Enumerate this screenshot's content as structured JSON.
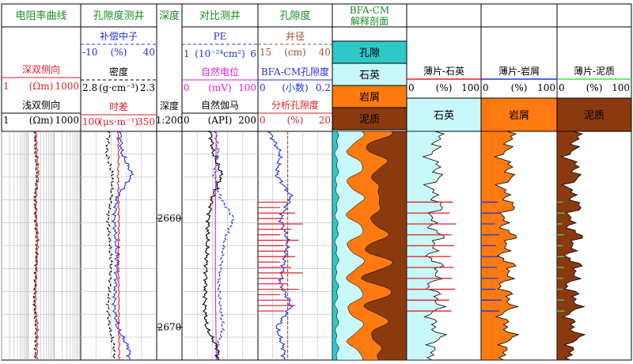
{
  "tracks": {
    "resistivity": {
      "title": "电阻率曲线",
      "curves": [
        {
          "name": "深双侧向",
          "left": "1",
          "unit": "(Ωm)",
          "right": "1000",
          "color": "#e0202a"
        },
        {
          "name": "浅双侧向",
          "left": "1",
          "unit": "(Ωm)",
          "right": "1000",
          "color": "#000000"
        }
      ]
    },
    "porosity_logs": {
      "title": "孔隙度测井",
      "curves": [
        {
          "name": "补偿中子",
          "left": "-10",
          "unit": "(%)",
          "right": "40",
          "color": "#2233dd"
        },
        {
          "name": "密度",
          "left": "2.8",
          "unit": "(g·cm⁻³)",
          "right": "2.3",
          "color": "#000000"
        },
        {
          "name": "时差",
          "left": "100",
          "unit": "(μs·m⁻¹)",
          "right": "350",
          "color": "#e0202a"
        }
      ]
    },
    "depth": {
      "title": "深度",
      "label": "深度",
      "scale": "1:200",
      "ticks": [
        "2660",
        "2670"
      ]
    },
    "correlation": {
      "title": "对比测井",
      "curves": [
        {
          "name": "PE",
          "left": "1",
          "unit": "(10⁻²⁴cm²)",
          "right": "6",
          "color": "#2233dd"
        },
        {
          "name": "自然电位",
          "left": "0",
          "unit": "(mV)",
          "right": "100",
          "color": "#dd22dd"
        },
        {
          "name": "自然伽马",
          "left": "0",
          "unit": "(API)",
          "right": "200",
          "color": "#000000"
        }
      ]
    },
    "porosity": {
      "title": "孔隙度",
      "curves": [
        {
          "name": "井径",
          "left": "15",
          "unit": "(cm)",
          "right": "40",
          "color": "#a0522d"
        },
        {
          "name": "BFA-CM孔隙度",
          "left": "0",
          "unit": "(小数)",
          "right": "0.2",
          "color": "#2233dd"
        },
        {
          "name": "分析孔隙度",
          "left": "0",
          "unit": "(%)",
          "right": "20",
          "color": "#e0202a"
        }
      ]
    },
    "bfa_profile": {
      "title": "BFA-CM",
      "subtitle": "解释剖面",
      "legend": [
        {
          "label": "孔隙",
          "color": "#2ec8c8"
        },
        {
          "label": "石英",
          "color": "#c8f8fa"
        },
        {
          "label": "岩屑",
          "color": "#ff7a10"
        },
        {
          "label": "泥质",
          "color": "#8b3a10"
        }
      ]
    },
    "thin_quartz": {
      "title": "薄片-石英",
      "left": "0",
      "unit": "(%)",
      "right": "100",
      "fill_label": "石英",
      "fill_color": "#c8f8fa",
      "mark_color": "#e0202a"
    },
    "thin_lithic": {
      "title": "薄片-岩屑",
      "left": "0",
      "unit": "(%)",
      "right": "100",
      "fill_label": "岩屑",
      "fill_color": "#ff7a10",
      "mark_color": "#2233dd"
    },
    "thin_clay": {
      "title": "薄片-泥质",
      "left": "0",
      "unit": "(%)",
      "right": "100",
      "fill_label": "泥质",
      "fill_color": "#8b3a10",
      "mark_color": "#44dd44"
    }
  },
  "chart_data": {
    "type": "line",
    "depth_range": [
      2652,
      2673
    ],
    "depth_ticks": [
      2660,
      2670
    ],
    "grid": true,
    "series": [
      {
        "name": "深双侧向",
        "x_unit": "Ωm",
        "scale": "log",
        "range": [
          1,
          1000
        ],
        "depth": [
          2652,
          2654,
          2656,
          2658,
          2660,
          2662,
          2664,
          2666,
          2668,
          2670,
          2672
        ],
        "values": [
          20,
          22,
          25,
          20,
          21,
          24,
          22,
          20,
          19,
          23,
          22
        ]
      },
      {
        "name": "浅双侧向",
        "x_unit": "Ωm",
        "scale": "log",
        "range": [
          1,
          1000
        ],
        "depth": [
          2652,
          2654,
          2656,
          2658,
          2660,
          2662,
          2664,
          2666,
          2668,
          2670,
          2672
        ],
        "values": [
          18,
          19,
          22,
          18,
          19,
          21,
          20,
          18,
          17,
          20,
          19
        ]
      },
      {
        "name": "补偿中子",
        "x_unit": "%",
        "range": [
          -10,
          40
        ],
        "depth": [
          2652,
          2654,
          2656,
          2658,
          2660,
          2662,
          2664,
          2666,
          2668,
          2670,
          2672
        ],
        "values": [
          16,
          17,
          24,
          14,
          12,
          13,
          14,
          13,
          12,
          14,
          22
        ]
      },
      {
        "name": "密度",
        "x_unit": "g·cm⁻³",
        "range": [
          2.8,
          2.3
        ],
        "depth": [
          2652,
          2654,
          2656,
          2658,
          2660,
          2662,
          2664,
          2666,
          2668,
          2670,
          2672
        ],
        "values": [
          2.61,
          2.63,
          2.59,
          2.6,
          2.62,
          2.61,
          2.6,
          2.61,
          2.62,
          2.61,
          2.58
        ]
      },
      {
        "name": "时差",
        "x_unit": "μs·m⁻¹",
        "range": [
          100,
          350
        ],
        "depth": [
          2652,
          2654,
          2656,
          2658,
          2660,
          2662,
          2664,
          2666,
          2668,
          2670,
          2672
        ],
        "values": [
          222,
          225,
          223,
          224,
          226,
          225,
          224,
          225,
          226,
          225,
          227
        ]
      },
      {
        "name": "PE",
        "x_unit": "10⁻²⁴cm²",
        "range": [
          1,
          6
        ],
        "depth": [
          2652,
          2654,
          2656,
          2658,
          2660,
          2662,
          2664,
          2666,
          2668,
          2670,
          2672
        ],
        "values": [
          3.2,
          3.4,
          3.1,
          3.5,
          4.4,
          3.8,
          3.6,
          3.4,
          3.5,
          3.7,
          3.3
        ]
      },
      {
        "name": "自然电位",
        "x_unit": "mV",
        "range": [
          0,
          100
        ],
        "depth": [
          2652,
          2660,
          2666,
          2672
        ],
        "values": [
          45,
          44,
          44,
          45
        ]
      },
      {
        "name": "自然伽马",
        "x_unit": "API",
        "range": [
          0,
          200
        ],
        "depth": [
          2652,
          2654,
          2656,
          2658,
          2660,
          2662,
          2664,
          2666,
          2668,
          2670,
          2672
        ],
        "values": [
          75,
          82,
          105,
          80,
          70,
          66,
          64,
          62,
          60,
          64,
          95
        ]
      },
      {
        "name": "井径",
        "x_unit": "cm",
        "range": [
          15,
          40
        ],
        "depth": [
          2652,
          2656,
          2660,
          2664,
          2668,
          2672
        ],
        "values": [
          25,
          25,
          25,
          25,
          25,
          25
        ]
      },
      {
        "name": "BFA-CM孔隙度",
        "x_unit": "小数",
        "range": [
          0,
          0.2
        ],
        "depth": [
          2652,
          2654,
          2656,
          2658,
          2660,
          2662,
          2664,
          2666,
          2668,
          2670,
          2672
        ],
        "values": [
          0.03,
          0.06,
          0.05,
          0.09,
          0.06,
          0.08,
          0.07,
          0.06,
          0.09,
          0.05,
          0.07
        ]
      }
    ],
    "analysis_porosity": {
      "x_unit": "%",
      "range": [
        0,
        20
      ],
      "depth": [
        2658.5,
        2659,
        2659.5,
        2660,
        2660.5,
        2661,
        2661.5,
        2662,
        2662.5,
        2663,
        2663.5,
        2664,
        2664.5,
        2665,
        2665.5,
        2666,
        2666.5,
        2667,
        2667.5,
        2668,
        2668.5
      ],
      "values": [
        8,
        6,
        10,
        7,
        12,
        9,
        6,
        11,
        7,
        8,
        10,
        6,
        9,
        12,
        7,
        8,
        11,
        6,
        9,
        10,
        7
      ]
    },
    "thin_section_quartz": {
      "x_unit": "%",
      "depth": [
        2658.5,
        2659.5,
        2660.5,
        2661.5,
        2662.5,
        2663.5,
        2664.5,
        2665.5,
        2666.5,
        2667.5,
        2668.5
      ],
      "values": [
        62,
        58,
        66,
        60,
        64,
        59,
        63,
        61,
        65,
        57,
        60
      ]
    },
    "thin_section_lithic": {
      "x_unit": "%",
      "depth": [
        2658.5,
        2659.5,
        2660.5,
        2661.5,
        2662.5,
        2663.5,
        2664.5,
        2665.5,
        2666.5,
        2667.5,
        2668.5
      ],
      "values": [
        22,
        26,
        18,
        24,
        20,
        25,
        21,
        23,
        19,
        27,
        24
      ]
    },
    "thin_section_clay": {
      "x_unit": "%",
      "depth": [
        2658.5,
        2659.5,
        2660.5,
        2661.5,
        2662.5,
        2663.5,
        2664.5,
        2665.5,
        2666.5,
        2667.5,
        2668.5
      ],
      "values": [
        8,
        10,
        7,
        9,
        8,
        10,
        9,
        8,
        7,
        9,
        10
      ]
    }
  }
}
